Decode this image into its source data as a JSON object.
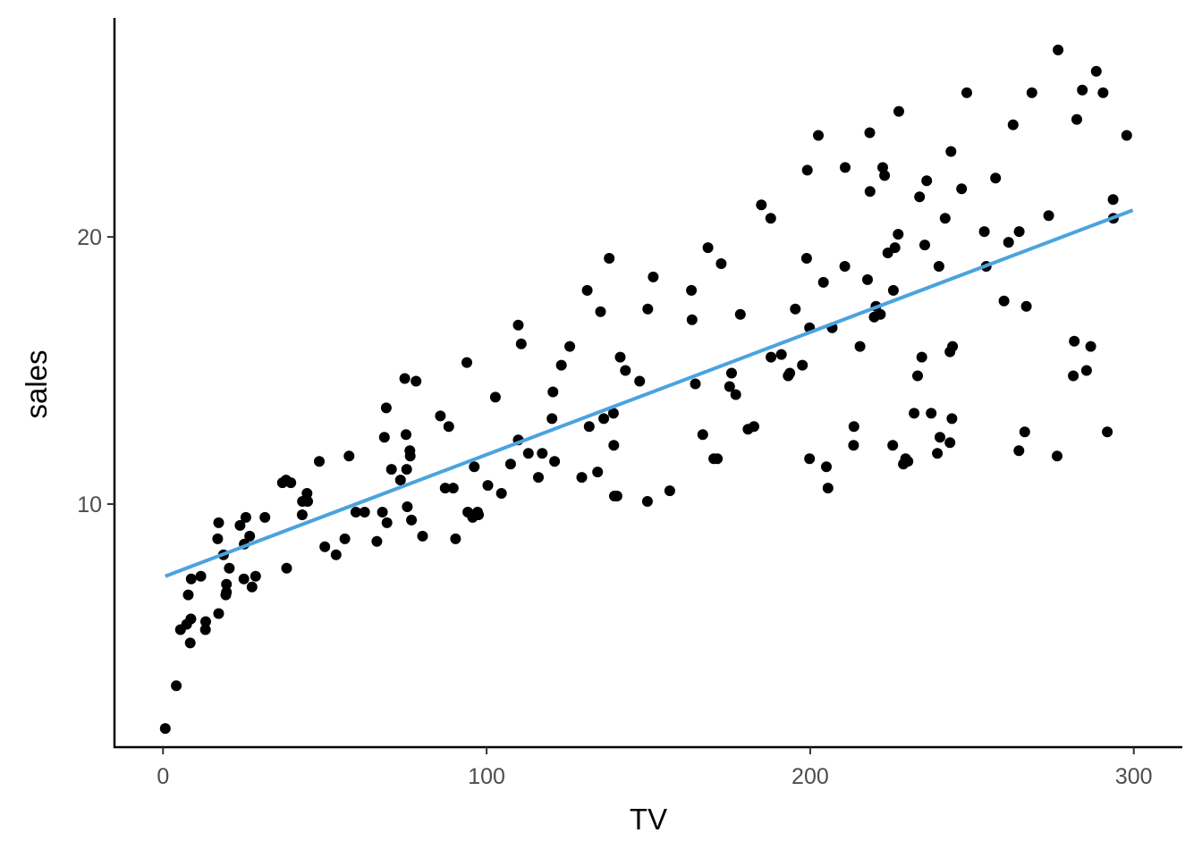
{
  "chart_data": {
    "type": "scatter",
    "title": "",
    "xlabel": "TV",
    "ylabel": "sales",
    "xlim": [
      -15,
      315
    ],
    "ylim": [
      0.9,
      28.2
    ],
    "x_ticks": [
      0,
      100,
      200,
      300
    ],
    "y_ticks": [
      10,
      20
    ],
    "x_tick_labels": [
      "0",
      "100",
      "200",
      "300"
    ],
    "y_tick_labels": [
      "10",
      "20"
    ],
    "grid": false,
    "legend": "none",
    "point_color": "#000000",
    "line_color": "#4aa3df",
    "points": [
      [
        0.7,
        1.6
      ],
      [
        4.1,
        3.2
      ],
      [
        5.4,
        5.3
      ],
      [
        7.3,
        5.5
      ],
      [
        7.8,
        6.6
      ],
      [
        8.4,
        4.8
      ],
      [
        8.6,
        5.7
      ],
      [
        8.7,
        7.2
      ],
      [
        11.7,
        7.3
      ],
      [
        13.1,
        5.3
      ],
      [
        13.2,
        5.6
      ],
      [
        16.9,
        8.7
      ],
      [
        17.2,
        5.9
      ],
      [
        17.2,
        9.3
      ],
      [
        18.7,
        8.1
      ],
      [
        19.4,
        6.6
      ],
      [
        19.6,
        7.0
      ],
      [
        19.6,
        6.7
      ],
      [
        20.5,
        7.6
      ],
      [
        23.8,
        9.2
      ],
      [
        25.0,
        7.2
      ],
      [
        25.1,
        8.5
      ],
      [
        25.6,
        9.5
      ],
      [
        26.8,
        8.8
      ],
      [
        27.5,
        6.9
      ],
      [
        28.6,
        7.3
      ],
      [
        31.5,
        9.5
      ],
      [
        36.9,
        10.8
      ],
      [
        38.2,
        7.6
      ],
      [
        38.0,
        10.9
      ],
      [
        39.5,
        10.8
      ],
      [
        43.0,
        9.6
      ],
      [
        43.1,
        10.1
      ],
      [
        44.5,
        10.4
      ],
      [
        44.7,
        10.1
      ],
      [
        48.3,
        11.6
      ],
      [
        50.0,
        8.4
      ],
      [
        53.5,
        8.1
      ],
      [
        56.2,
        8.7
      ],
      [
        57.5,
        11.8
      ],
      [
        59.6,
        9.7
      ],
      [
        62.3,
        9.7
      ],
      [
        66.1,
        8.6
      ],
      [
        67.8,
        9.7
      ],
      [
        68.4,
        12.5
      ],
      [
        69.0,
        13.6
      ],
      [
        69.2,
        9.3
      ],
      [
        70.6,
        11.3
      ],
      [
        73.4,
        10.9
      ],
      [
        74.7,
        14.7
      ],
      [
        75.1,
        12.6
      ],
      [
        75.3,
        11.3
      ],
      [
        75.5,
        9.9
      ],
      [
        76.3,
        12.0
      ],
      [
        76.4,
        11.8
      ],
      [
        76.8,
        9.4
      ],
      [
        78.2,
        14.6
      ],
      [
        80.2,
        8.8
      ],
      [
        85.7,
        13.3
      ],
      [
        87.2,
        10.6
      ],
      [
        88.3,
        12.9
      ],
      [
        89.7,
        10.6
      ],
      [
        90.4,
        8.7
      ],
      [
        93.9,
        15.3
      ],
      [
        94.2,
        9.7
      ],
      [
        95.7,
        9.5
      ],
      [
        96.2,
        11.4
      ],
      [
        97.2,
        9.7
      ],
      [
        97.5,
        9.6
      ],
      [
        100.4,
        10.7
      ],
      [
        102.7,
        14.0
      ],
      [
        104.6,
        10.4
      ],
      [
        107.4,
        11.5
      ],
      [
        109.8,
        12.4
      ],
      [
        109.8,
        16.7
      ],
      [
        110.7,
        16.0
      ],
      [
        112.9,
        11.9
      ],
      [
        116.0,
        11.0
      ],
      [
        117.2,
        11.9
      ],
      [
        120.2,
        13.2
      ],
      [
        120.5,
        14.2
      ],
      [
        121.0,
        11.6
      ],
      [
        123.1,
        15.2
      ],
      [
        125.7,
        15.9
      ],
      [
        129.4,
        11.0
      ],
      [
        131.1,
        18.0
      ],
      [
        131.7,
        12.9
      ],
      [
        134.3,
        11.2
      ],
      [
        135.2,
        17.2
      ],
      [
        136.2,
        13.2
      ],
      [
        137.9,
        19.2
      ],
      [
        139.2,
        13.4
      ],
      [
        139.3,
        12.2
      ],
      [
        139.5,
        10.3
      ],
      [
        140.3,
        10.3
      ],
      [
        141.3,
        15.5
      ],
      [
        142.9,
        15.0
      ],
      [
        147.3,
        14.6
      ],
      [
        149.7,
        10.1
      ],
      [
        149.8,
        17.3
      ],
      [
        151.5,
        18.5
      ],
      [
        156.6,
        10.5
      ],
      [
        163.3,
        18.0
      ],
      [
        163.5,
        16.9
      ],
      [
        164.5,
        14.5
      ],
      [
        166.8,
        12.6
      ],
      [
        168.4,
        19.6
      ],
      [
        170.2,
        11.7
      ],
      [
        171.3,
        11.7
      ],
      [
        172.5,
        19.0
      ],
      [
        175.1,
        14.4
      ],
      [
        175.7,
        14.9
      ],
      [
        177.0,
        14.1
      ],
      [
        178.4,
        17.1
      ],
      [
        180.8,
        12.8
      ],
      [
        182.6,
        12.9
      ],
      [
        184.9,
        21.2
      ],
      [
        187.8,
        20.7
      ],
      [
        187.9,
        15.5
      ],
      [
        191.1,
        15.6
      ],
      [
        193.2,
        14.8
      ],
      [
        193.7,
        14.9
      ],
      [
        195.4,
        17.3
      ],
      [
        197.6,
        15.2
      ],
      [
        198.9,
        19.2
      ],
      [
        199.1,
        22.5
      ],
      [
        199.8,
        11.7
      ],
      [
        199.8,
        16.6
      ],
      [
        202.5,
        23.8
      ],
      [
        204.1,
        18.3
      ],
      [
        205.0,
        11.4
      ],
      [
        205.5,
        10.6
      ],
      [
        206.8,
        16.6
      ],
      [
        210.7,
        18.9
      ],
      [
        210.8,
        22.6
      ],
      [
        213.4,
        12.2
      ],
      [
        213.5,
        12.9
      ],
      [
        215.4,
        15.9
      ],
      [
        217.7,
        18.4
      ],
      [
        218.4,
        23.9
      ],
      [
        218.5,
        21.7
      ],
      [
        219.8,
        17.0
      ],
      [
        220.3,
        17.4
      ],
      [
        221.7,
        17.1
      ],
      [
        222.4,
        22.6
      ],
      [
        223.0,
        22.3
      ],
      [
        224.0,
        19.4
      ],
      [
        225.5,
        12.2
      ],
      [
        225.7,
        18.0
      ],
      [
        226.2,
        19.6
      ],
      [
        227.2,
        20.1
      ],
      [
        227.4,
        24.7
      ],
      [
        228.8,
        11.5
      ],
      [
        229.5,
        11.7
      ],
      [
        230.2,
        11.6
      ],
      [
        232.1,
        13.4
      ],
      [
        233.2,
        14.8
      ],
      [
        233.8,
        21.5
      ],
      [
        234.5,
        15.5
      ],
      [
        235.4,
        19.7
      ],
      [
        236.0,
        22.1
      ],
      [
        237.4,
        13.4
      ],
      [
        239.3,
        11.9
      ],
      [
        239.8,
        18.9
      ],
      [
        240.1,
        12.5
      ],
      [
        241.7,
        20.7
      ],
      [
        243.2,
        12.3
      ],
      [
        243.2,
        15.7
      ],
      [
        243.5,
        23.2
      ],
      [
        243.8,
        13.2
      ],
      [
        244.0,
        15.9
      ],
      [
        246.8,
        21.8
      ],
      [
        248.4,
        25.4
      ],
      [
        253.8,
        20.2
      ],
      [
        254.4,
        18.9
      ],
      [
        257.3,
        22.2
      ],
      [
        259.9,
        17.6
      ],
      [
        261.3,
        19.8
      ],
      [
        262.7,
        24.2
      ],
      [
        264.5,
        12.0
      ],
      [
        264.6,
        20.2
      ],
      [
        266.3,
        12.7
      ],
      [
        266.8,
        17.4
      ],
      [
        268.5,
        25.4
      ],
      [
        273.7,
        20.8
      ],
      [
        276.3,
        11.8
      ],
      [
        276.6,
        27.0
      ],
      [
        281.3,
        14.8
      ],
      [
        281.6,
        16.1
      ],
      [
        282.4,
        24.4
      ],
      [
        284.1,
        25.5
      ],
      [
        285.4,
        15.0
      ],
      [
        286.7,
        15.9
      ],
      [
        288.4,
        26.2
      ],
      [
        290.5,
        25.4
      ],
      [
        291.8,
        12.7
      ],
      [
        293.6,
        21.4
      ],
      [
        293.7,
        20.7
      ],
      [
        297.8,
        23.8
      ]
    ],
    "fit_line": {
      "x": [
        0.7,
        299.7
      ],
      "y": [
        7.3,
        21.0
      ]
    }
  }
}
